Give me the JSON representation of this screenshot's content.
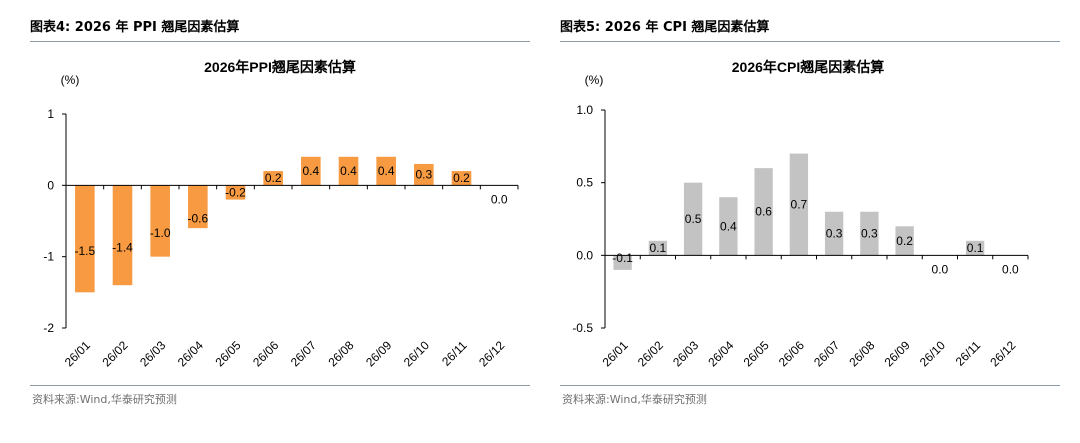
{
  "colors": {
    "ppi_bar": "#F79A41",
    "cpi_bar": "#C3C3C3",
    "axis": "#000000",
    "rule": "#8a9aa8",
    "source_text": "#707070"
  },
  "left_panel": {
    "figure_title": "图表4:  2026 年 PPI 翘尾因素估算",
    "source": "资料来源:Wind,华泰研究预测"
  },
  "right_panel": {
    "figure_title": "图表5:  2026 年 CPI 翘尾因素估算",
    "source": "资料来源:Wind,华泰研究预测"
  },
  "chart_data": [
    {
      "type": "bar",
      "title": "2026年PPI翘尾因素估算",
      "unit_label": "(%)",
      "categories": [
        "26/01",
        "26/02",
        "26/03",
        "26/04",
        "26/05",
        "26/06",
        "26/07",
        "26/08",
        "26/09",
        "26/10",
        "26/11",
        "26/12"
      ],
      "values": [
        -1.5,
        -1.4,
        -1.0,
        -0.6,
        -0.2,
        0.2,
        0.4,
        0.4,
        0.4,
        0.3,
        0.2,
        0.0
      ],
      "value_labels": [
        "-1.5",
        "-1.4",
        "-1.0",
        "-0.6",
        "-0.2",
        "0.2",
        "0.4",
        "0.4",
        "0.4",
        "0.3",
        "0.2",
        "0.0"
      ],
      "yticks": [
        1,
        0,
        -1,
        -2
      ],
      "ytick_labels": [
        "1",
        "0",
        "-1",
        "-2"
      ],
      "ylim": [
        -2,
        1
      ],
      "xlabel": "",
      "ylabel": "",
      "grid": false,
      "legend": "none"
    },
    {
      "type": "bar",
      "title": "2026年CPI翘尾因素估算",
      "unit_label": "(%)",
      "categories": [
        "26/01",
        "26/02",
        "26/03",
        "26/04",
        "26/05",
        "26/06",
        "26/07",
        "26/08",
        "26/09",
        "26/10",
        "26/11",
        "26/12"
      ],
      "values": [
        -0.1,
        0.1,
        0.5,
        0.4,
        0.6,
        0.7,
        0.3,
        0.3,
        0.2,
        0.0,
        0.1,
        0.0
      ],
      "value_labels": [
        "-0.1",
        "0.1",
        "0.5",
        "0.4",
        "0.6",
        "0.7",
        "0.3",
        "0.3",
        "0.2",
        "0.0",
        "0.1",
        "0.0"
      ],
      "yticks": [
        1.0,
        0.5,
        0.0,
        -0.5
      ],
      "ytick_labels": [
        "1.0",
        "0.5",
        "0.0",
        "-0.5"
      ],
      "ylim": [
        -0.5,
        1.0
      ],
      "xlabel": "",
      "ylabel": "",
      "grid": false,
      "legend": "none"
    }
  ]
}
